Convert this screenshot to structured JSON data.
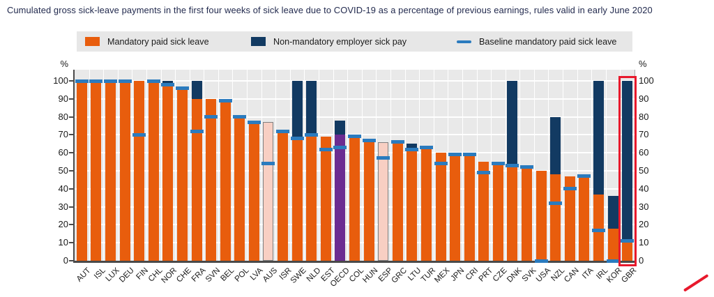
{
  "title": "Cumulated gross sick-leave payments in the first four weeks of sick leave due to COVID-19 as a percentage of previous earnings, rules valid in early June 2020",
  "legend": {
    "items": [
      {
        "label": "Mandatory paid sick leave",
        "swatch": "orange"
      },
      {
        "label": "Non-mandatory employer sick pay",
        "swatch": "navy"
      },
      {
        "label": "Baseline mandatory paid sick leave",
        "swatch": "line"
      }
    ]
  },
  "axis": {
    "unit_label": "%",
    "yticks": [
      0,
      10,
      20,
      30,
      40,
      50,
      60,
      70,
      80,
      90,
      100
    ]
  },
  "colors": {
    "orange": "#e85d0d",
    "navy": "#123a62",
    "baseline_blue": "#2b7bbe",
    "pink": "#f8cfc3",
    "purple": "#6b2c91",
    "plot_background": "#e9e9e9",
    "legend_background": "#e7e7e7",
    "highlight_red": "#e8192c"
  },
  "annotations": {
    "highlight_country": "GBR",
    "red_underline_country": "GBR"
  },
  "chart_data": {
    "type": "bar",
    "title": "Cumulated gross sick-leave payments in the first four weeks of sick leave due to COVID-19 as a percentage of previous earnings, rules valid in early June 2020",
    "xlabel": "",
    "ylabel": "%",
    "ylim": [
      0,
      100
    ],
    "grid": true,
    "legend_position": "top",
    "categories": [
      "AUT",
      "ISL",
      "LUX",
      "DEU",
      "FIN",
      "CHL",
      "NOR",
      "CHE",
      "FRA",
      "SVN",
      "BEL",
      "POL",
      "LVA",
      "AUS",
      "ISR",
      "SWE",
      "NLD",
      "EST",
      "OECD",
      "COL",
      "HUN",
      "ESP",
      "GRC",
      "LTU",
      "TUR",
      "MEX",
      "JPN",
      "CRI",
      "PRT",
      "CZE",
      "DNK",
      "SVK",
      "USA",
      "NZL",
      "CAN",
      "ITA",
      "IRL",
      "KOR",
      "GBR"
    ],
    "bar_styles": [
      "orange",
      "orange",
      "orange",
      "orange",
      "orange",
      "orange",
      "orange",
      "orange",
      "orange",
      "orange",
      "orange",
      "orange",
      "orange",
      "pink",
      "orange",
      "orange",
      "orange",
      "orange",
      "purple",
      "orange",
      "orange",
      "pink",
      "orange",
      "orange",
      "orange",
      "orange",
      "orange",
      "orange",
      "orange",
      "orange",
      "orange",
      "orange",
      "orange",
      "orange",
      "orange",
      "orange",
      "orange",
      "orange",
      "orange"
    ],
    "series": [
      {
        "name": "Mandatory paid sick leave",
        "values": [
          100,
          100,
          100,
          100,
          100,
          100,
          98,
          95,
          90,
          90,
          89,
          80,
          76,
          77,
          73,
          69,
          70,
          69,
          70,
          69,
          67,
          66,
          66,
          62,
          63,
          60,
          60,
          59,
          55,
          54,
          53,
          51,
          50,
          48,
          47,
          46,
          37,
          18,
          10
        ]
      },
      {
        "name": "Non-mandatory employer sick pay (stack top, total incl. mandatory)",
        "values": [
          null,
          null,
          null,
          null,
          null,
          null,
          100,
          null,
          100,
          null,
          null,
          null,
          null,
          null,
          null,
          100,
          100,
          null,
          78,
          null,
          null,
          null,
          null,
          65,
          null,
          null,
          null,
          null,
          null,
          null,
          100,
          null,
          null,
          80,
          null,
          null,
          100,
          36,
          100
        ]
      },
      {
        "name": "Baseline mandatory paid sick leave",
        "values": [
          100,
          100,
          100,
          100,
          70,
          100,
          98,
          96,
          72,
          80,
          89,
          80,
          77,
          54,
          72,
          68,
          70,
          62,
          63,
          69,
          67,
          57,
          66,
          62,
          63,
          54,
          59,
          59,
          49,
          54,
          53,
          52,
          0,
          32,
          40,
          47,
          17,
          0,
          11
        ]
      }
    ]
  }
}
